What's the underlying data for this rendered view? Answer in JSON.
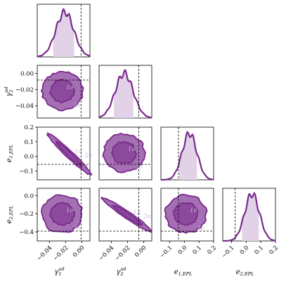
{
  "chart_data": {
    "type": "corner",
    "colors": {
      "main": "#7a2a8c",
      "fill_inner": "#8c4a9c",
      "fill_outer": "#a56fb3",
      "shade": "#e2d2e8",
      "truth_line": "#000000",
      "contour_label": "#c9b8d9"
    },
    "parameters": [
      {
        "name": "gamma1_od",
        "label_main": "γ",
        "label_sub": "1",
        "label_sup": "od",
        "range": [
          -0.055,
          0.01
        ],
        "ticks": [
          -0.04,
          -0.02,
          0.0
        ],
        "tick_labels": [
          "−0.04",
          "−0.02",
          "0.00"
        ],
        "truth": -0.001,
        "mean": -0.021,
        "sd": 0.011,
        "ci68": [
          -0.036,
          -0.009
        ]
      },
      {
        "name": "gamma2_od",
        "label_main": "γ",
        "label_sub": "2",
        "label_sup": "od",
        "range": [
          -0.055,
          0.01
        ],
        "ticks": [
          -0.04,
          -0.02,
          0.0
        ],
        "tick_labels": [
          "−0.04",
          "−0.02",
          "0.00"
        ],
        "truth": -0.006,
        "mean": -0.024,
        "sd": 0.011,
        "ci68": [
          -0.037,
          -0.012
        ]
      },
      {
        "name": "e1_EPL",
        "label_main": "e",
        "label_sub": "1,EPL",
        "label_sup": "",
        "range": [
          -0.16,
          0.2
        ],
        "ticks": [
          -0.1,
          0.0,
          0.1,
          0.2
        ],
        "tick_labels": [
          "−0.1",
          "0.0",
          "0.1",
          "0.2"
        ],
        "truth": -0.04,
        "mean": 0.035,
        "sd": 0.05,
        "ci68": [
          -0.04,
          0.09
        ]
      },
      {
        "name": "e2_EPL",
        "label_main": "e",
        "label_sub": "2,EPL",
        "label_sup": "",
        "range": [
          -0.16,
          0.2
        ],
        "ticks": [
          -0.1,
          0.0,
          0.1,
          0.2
        ],
        "tick_labels": [
          "−0.1",
          "0.0",
          "0.1",
          "0.2"
        ],
        "truth": -0.075,
        "mean": 0.04,
        "sd": 0.05,
        "ci68": [
          -0.03,
          0.09
        ]
      }
    ],
    "y_ticks": {
      "gamma2_od": {
        "ticks": [
          0.0,
          -0.02,
          -0.04
        ],
        "labels": [
          "0.00",
          "−0.02",
          "−0.04"
        ]
      },
      "e1_EPL": {
        "ticks": [
          0.2,
          0.1,
          0.0,
          -0.1
        ],
        "labels": [
          "0.2",
          "0.1",
          "0.0",
          "−0.1"
        ]
      },
      "e2_EPL": {
        "ticks": [
          0.0,
          -0.2,
          -0.4
        ],
        "labels": [
          "0.0",
          "−0.2",
          "−0.4"
        ]
      }
    },
    "row_ranges": {
      "gamma2_od": [
        -0.055,
        0.01
      ],
      "e1_EPL": [
        -0.16,
        0.2
      ],
      "e2_EPL": [
        -0.5,
        0.08
      ]
    },
    "correlations": {
      "1,0": 0.0,
      "2,0": -0.97,
      "2,1": 0.0,
      "3,0": 0.0,
      "3,1": -0.96,
      "3,2": 0.0
    },
    "contour_levels": [
      "1σ",
      "2σ"
    ],
    "contour_label_1": "1σ",
    "contour_label_2": "2σ"
  }
}
